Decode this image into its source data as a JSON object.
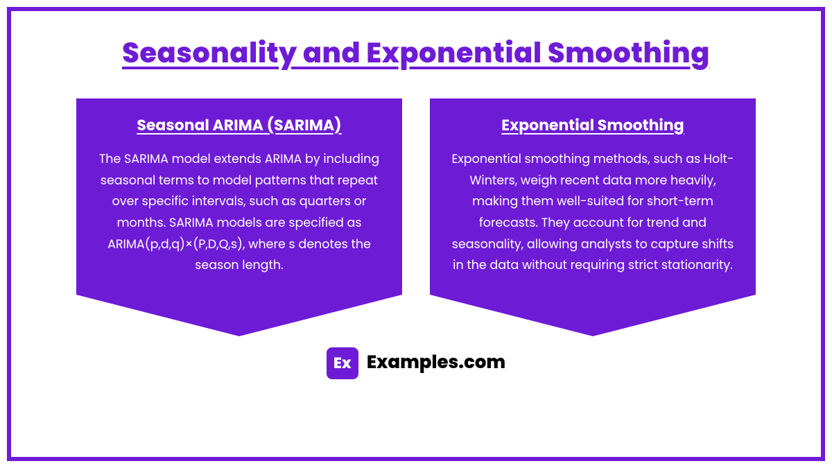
{
  "colors": {
    "accent": "#6e1bd6",
    "background": "#ffffff",
    "card_text": "#ffffff",
    "footer_text": "#000000"
  },
  "title": "Seasonality and Exponential Smoothing",
  "cards": [
    {
      "title": "Seasonal ARIMA (SARIMA)",
      "body": "The SARIMA model extends ARIMA by including seasonal terms to model patterns that repeat over specific intervals, such as quarters or months. SARIMA models are specified as ARIMA(p,d,q)×(P,D,Q,s), where s denotes the season length."
    },
    {
      "title": "Exponential Smoothing",
      "body": "Exponential smoothing methods, such as Holt-Winters, weigh recent data more heavily, making them well-suited for short-term forecasts. They account for trend and seasonality, allowing analysts to capture shifts in the data without requiring strict stationarity."
    }
  ],
  "footer": {
    "logo_text": "Ex",
    "site": "Examples.com"
  }
}
